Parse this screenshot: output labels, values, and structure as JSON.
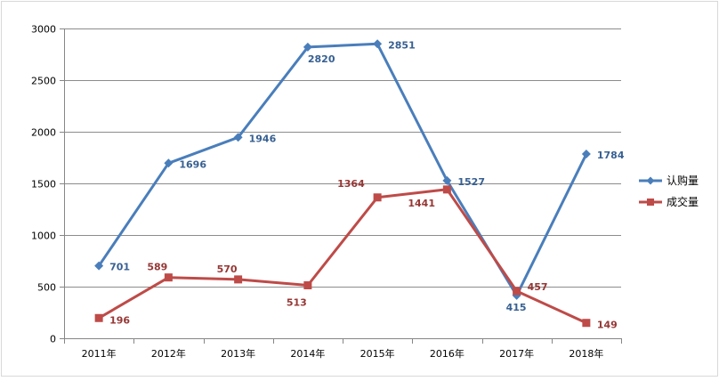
{
  "chart_data": {
    "type": "line",
    "title": "",
    "xlabel": "",
    "ylabel": "",
    "categories": [
      "2011年",
      "2012年",
      "2013年",
      "2014年",
      "2015年",
      "2016年",
      "2017年",
      "2018年"
    ],
    "ylim": [
      0,
      3000
    ],
    "yticks": [
      "0",
      "500",
      "1000",
      "1500",
      "2000",
      "2500",
      "3000"
    ],
    "grid": true,
    "legend_position": "right",
    "series": [
      {
        "name": "认购量",
        "values": [
          701,
          1696,
          1946,
          2820,
          2851,
          1527,
          415,
          1784
        ],
        "labels": [
          "701",
          "1696",
          "1946",
          "2820",
          "2851",
          "1527",
          "415",
          "1784"
        ],
        "color": "#4a7ebb",
        "marker": "diamond"
      },
      {
        "name": "成交量",
        "values": [
          196,
          589,
          570,
          513,
          1364,
          1441,
          457,
          149
        ],
        "labels": [
          "196",
          "589",
          "570",
          "513",
          "1364",
          "1441",
          "457",
          "149"
        ],
        "color": "#be4b48",
        "marker": "square"
      }
    ]
  }
}
